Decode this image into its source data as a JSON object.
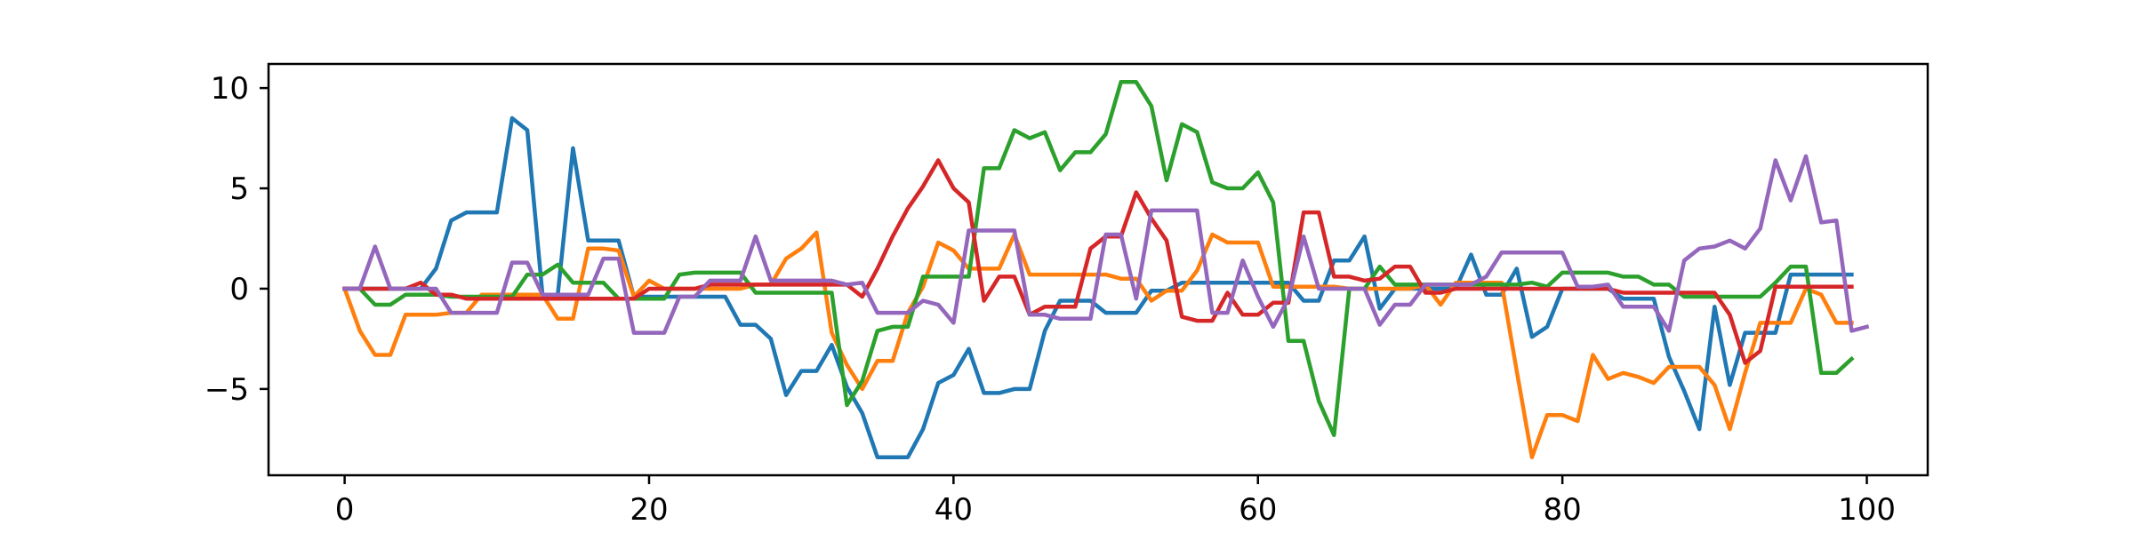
{
  "chart_data": {
    "type": "line",
    "title": "",
    "xlabel": "",
    "ylabel": "",
    "xlim": [
      -5,
      104
    ],
    "ylim": [
      -9.3,
      11.2
    ],
    "grid": false,
    "xticks": [
      0,
      20,
      40,
      60,
      80,
      100
    ],
    "yticks": [
      -5,
      0,
      5,
      10
    ],
    "xtick_labels": [
      "0",
      "20",
      "40",
      "60",
      "80",
      "100"
    ],
    "ytick_labels": [
      "−5",
      "0",
      "5",
      "10"
    ],
    "series": [
      {
        "color": "#1f77b4",
        "values": [
          0,
          0,
          0,
          0,
          0,
          0,
          1,
          3.4,
          3.8,
          3.8,
          3.8,
          8.5,
          7.9,
          -0.3,
          -0.3,
          7,
          2.4,
          2.4,
          2.4,
          -0.4,
          -0.4,
          -0.4,
          -0.4,
          -0.4,
          -0.4,
          -0.4,
          -1.8,
          -1.8,
          -2.5,
          -5.3,
          -4.1,
          -4.1,
          -2.8,
          -4.9,
          -6.2,
          -8.4,
          -8.4,
          -8.4,
          -7,
          -4.7,
          -4.3,
          -3,
          -5.2,
          -5.2,
          -5,
          -5,
          -2.1,
          -0.6,
          -0.6,
          -0.6,
          -1.2,
          -1.2,
          -1.2,
          -0.1,
          -0.1,
          0.3,
          0.3,
          0.3,
          0.3,
          0.3,
          0.3,
          0.3,
          0.3,
          -0.6,
          -0.6,
          1.4,
          1.4,
          2.6,
          -1,
          0,
          0,
          0,
          0,
          0,
          1.7,
          -0.3,
          -0.3,
          1,
          -2.4,
          -1.9,
          0,
          0,
          0,
          0,
          -0.5,
          -0.5,
          -0.5,
          -3.4,
          -5.1,
          -7,
          -0.9,
          -4.8,
          -2.2,
          -2.2,
          -2.2,
          0.7,
          0.7,
          0.7,
          0.7,
          0.7
        ]
      },
      {
        "color": "#ff7f0e",
        "values": [
          0,
          -2.1,
          -3.3,
          -3.3,
          -1.3,
          -1.3,
          -1.3,
          -1.2,
          -1.2,
          -0.3,
          -0.3,
          -0.3,
          -0.3,
          -0.3,
          -1.5,
          -1.5,
          2,
          2,
          1.9,
          -0.4,
          0.4,
          0,
          0,
          0,
          0,
          0,
          0,
          0.2,
          0.2,
          1.5,
          2,
          2.8,
          -2.2,
          -3.8,
          -5,
          -3.6,
          -3.6,
          -1.2,
          0.1,
          2.3,
          1.9,
          1,
          1,
          1,
          2.7,
          0.7,
          0.7,
          0.7,
          0.7,
          0.7,
          0.7,
          0.5,
          0.5,
          -0.6,
          -0.1,
          -0.1,
          0.9,
          2.7,
          2.3,
          2.3,
          2.3,
          0.1,
          0.1,
          0.1,
          0.1,
          0.1,
          0,
          0,
          0,
          0,
          0,
          0.2,
          -0.8,
          0.3,
          0.3,
          0.3,
          0.3,
          -4.1,
          -8.4,
          -6.3,
          -6.3,
          -6.6,
          -3.3,
          -4.5,
          -4.2,
          -4.4,
          -4.7,
          -3.9,
          -3.9,
          -3.9,
          -4.8,
          -7,
          -4.2,
          -1.7,
          -1.7,
          -1.7,
          0,
          -0.3,
          -1.7,
          -1.7
        ]
      },
      {
        "color": "#2ca02c",
        "values": [
          0,
          0,
          -0.8,
          -0.8,
          -0.3,
          -0.3,
          -0.3,
          -0.4,
          -0.4,
          -0.4,
          -0.4,
          -0.4,
          0.7,
          0.7,
          1.2,
          0.3,
          0.3,
          0.3,
          -0.5,
          -0.5,
          -0.5,
          -0.5,
          0.7,
          0.8,
          0.8,
          0.8,
          0.8,
          -0.2,
          -0.2,
          -0.2,
          -0.2,
          -0.2,
          -0.2,
          -5.8,
          -4.6,
          -2.1,
          -1.9,
          -1.9,
          0.6,
          0.6,
          0.6,
          0.6,
          6,
          6,
          7.9,
          7.5,
          7.8,
          5.9,
          6.8,
          6.8,
          7.7,
          10.3,
          10.3,
          9.1,
          5.4,
          8.2,
          7.8,
          5.3,
          5,
          5,
          5.8,
          4.3,
          -2.6,
          -2.6,
          -5.6,
          -7.3,
          0,
          0,
          1.1,
          0.2,
          0.2,
          0.2,
          0.2,
          0.2,
          0.2,
          0.2,
          0.2,
          0.2,
          0.3,
          0.1,
          0.8,
          0.8,
          0.8,
          0.8,
          0.6,
          0.6,
          0.2,
          0.2,
          -0.4,
          -0.4,
          -0.4,
          -0.4,
          -0.4,
          -0.4,
          0.3,
          1.1,
          1.1,
          -4.2,
          -4.2,
          -3.5
        ]
      },
      {
        "color": "#d62728",
        "values": [
          0,
          0,
          0,
          0,
          0,
          0.3,
          -0.3,
          -0.3,
          -0.5,
          -0.5,
          -0.5,
          -0.5,
          -0.5,
          -0.5,
          -0.5,
          -0.5,
          -0.5,
          -0.5,
          -0.5,
          -0.5,
          0,
          0,
          0,
          0,
          0.2,
          0.2,
          0.2,
          0.2,
          0.2,
          0.2,
          0.2,
          0.2,
          0.2,
          0.2,
          -0.4,
          1,
          2.6,
          4,
          5.1,
          6.4,
          5,
          4.3,
          -0.6,
          0.6,
          0.6,
          -1.3,
          -0.9,
          -0.9,
          -0.9,
          2,
          2.6,
          2.6,
          4.8,
          3.5,
          2.4,
          -1.4,
          -1.6,
          -1.6,
          -0.2,
          -1.3,
          -1.3,
          -0.7,
          -0.7,
          3.8,
          3.8,
          0.6,
          0.6,
          0.4,
          0.5,
          1.1,
          1.1,
          -0.2,
          -0.2,
          0,
          0,
          0,
          0,
          0,
          0,
          0,
          0,
          0,
          0,
          0,
          -0.2,
          -0.2,
          -0.2,
          -0.2,
          -0.2,
          -0.2,
          -0.2,
          -1.3,
          -3.7,
          -3.1,
          0.1,
          0.1,
          0.1,
          0.1,
          0.1,
          0.1
        ]
      },
      {
        "color": "#9467bd",
        "values": [
          0,
          0,
          2.1,
          0,
          0,
          0,
          0,
          -1.2,
          -1.2,
          -1.2,
          -1.2,
          1.3,
          1.3,
          -0.3,
          -0.3,
          -0.3,
          -0.3,
          1.5,
          1.5,
          -2.2,
          -2.2,
          -2.2,
          -0.4,
          -0.4,
          0.4,
          0.4,
          0.4,
          2.6,
          0.4,
          0.4,
          0.4,
          0.4,
          0.4,
          0.2,
          0.3,
          -1.2,
          -1.2,
          -1.2,
          -0.6,
          -0.8,
          -1.7,
          2.9,
          2.9,
          2.9,
          2.9,
          -1.3,
          -1.3,
          -1.5,
          -1.5,
          -1.5,
          2.7,
          2.7,
          -0.5,
          3.9,
          3.9,
          3.9,
          3.9,
          -1.2,
          -1.2,
          1.4,
          -0.4,
          -1.9,
          -0.5,
          2.6,
          0,
          0,
          0,
          0,
          -1.8,
          -0.8,
          -0.8,
          0.2,
          0.2,
          0.2,
          0.2,
          0.6,
          1.8,
          1.8,
          1.8,
          1.8,
          1.8,
          0.1,
          0.1,
          0.2,
          -0.9,
          -0.9,
          -0.9,
          -2.1,
          1.4,
          2,
          2.1,
          2.4,
          2,
          3,
          6.4,
          4.4,
          6.6,
          3.3,
          3.4,
          -2.1,
          -1.9
        ]
      }
    ]
  }
}
